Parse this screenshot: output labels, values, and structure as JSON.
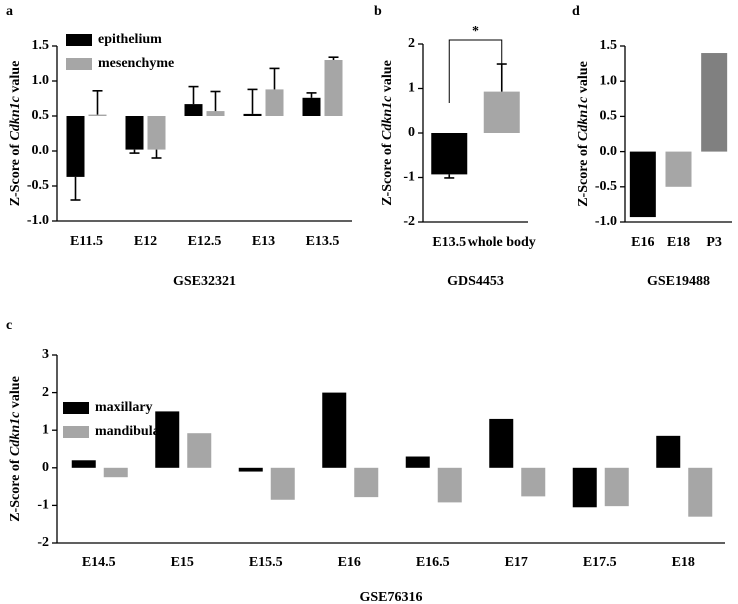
{
  "chart_data": [
    {
      "panel": "a",
      "type": "bar",
      "categories": [
        "E11.5",
        "E12",
        "E12.5",
        "E13",
        "E13.5"
      ],
      "series": [
        {
          "name": "epithelium",
          "color": "#000000",
          "values": [
            -0.37,
            0.02,
            0.67,
            0.53,
            0.76
          ],
          "errors": [
            0.33,
            0.05,
            0.25,
            0.35,
            0.07
          ]
        },
        {
          "name": "mesenchyme",
          "color": "#a6a6a6",
          "values": [
            0.52,
            0.02,
            0.57,
            0.88,
            1.3
          ],
          "errors": [
            0.34,
            0.12,
            0.28,
            0.3,
            0.04
          ]
        }
      ],
      "bar_baseline": 0.5,
      "ylim": [
        -1.0,
        1.5
      ],
      "yticks": [
        {
          "value": -1.0,
          "label": "-1.0"
        },
        -0.5,
        {
          "value": 0.0,
          "label": "0.0"
        },
        0.5,
        {
          "value": 1.0,
          "label": "1.0"
        },
        1.5
      ],
      "ylabel": [
        "Z-Score of ",
        "Cdkn1c",
        " value"
      ],
      "xlabel": "GSE32321",
      "legend": "top-left"
    },
    {
      "panel": "b",
      "type": "bar",
      "categories": [
        "E13.5",
        "whole body"
      ],
      "values": [
        -0.93,
        0.93
      ],
      "errors": [
        0.08,
        0.62
      ],
      "colors": [
        "#000000",
        "#a6a6a6"
      ],
      "ylim": [
        -2,
        2
      ],
      "yticks": [
        -2,
        -1,
        0,
        1,
        2
      ],
      "ylabel": [
        "Z-Score of ",
        "Cdkn1c",
        " value"
      ],
      "xlabel": "GDS4453",
      "annotation": "*"
    },
    {
      "panel": "c",
      "type": "bar",
      "categories": [
        "E14.5",
        "E15",
        "E15.5",
        "E16",
        "E16.5",
        "E17",
        "E17.5",
        "E18"
      ],
      "series": [
        {
          "name": "maxillary",
          "color": "#000000",
          "values": [
            0.2,
            1.5,
            -0.1,
            2.0,
            0.3,
            1.3,
            -1.05,
            0.85
          ]
        },
        {
          "name": "mandibular",
          "color": "#a6a6a6",
          "values": [
            -0.25,
            0.92,
            -0.85,
            -0.78,
            -0.92,
            -0.76,
            -1.02,
            -1.3
          ]
        }
      ],
      "ylim": [
        -2,
        3
      ],
      "yticks": [
        -2,
        -1,
        0,
        1,
        2,
        3
      ],
      "ylabel": [
        "Z-Score of ",
        "Cdkn1c",
        " value"
      ],
      "xlabel": "GSE76316",
      "legend": "top-left"
    },
    {
      "panel": "d",
      "type": "bar",
      "categories": [
        "E16",
        "E18",
        "P3"
      ],
      "values": [
        -0.93,
        -0.5,
        1.4
      ],
      "colors": [
        "#000000",
        "#a6a6a6",
        "#808080"
      ],
      "ylim": [
        -1.0,
        1.5
      ],
      "yticks": [
        {
          "value": -1.0,
          "label": "-1.0"
        },
        -0.5,
        {
          "value": 0.0,
          "label": "0.0"
        },
        0.5,
        {
          "value": 1.0,
          "label": "1.0"
        },
        1.5
      ],
      "ylabel": [
        "Z-Score of ",
        "Cdkn1c",
        " value"
      ],
      "xlabel": "GSE19488"
    }
  ]
}
